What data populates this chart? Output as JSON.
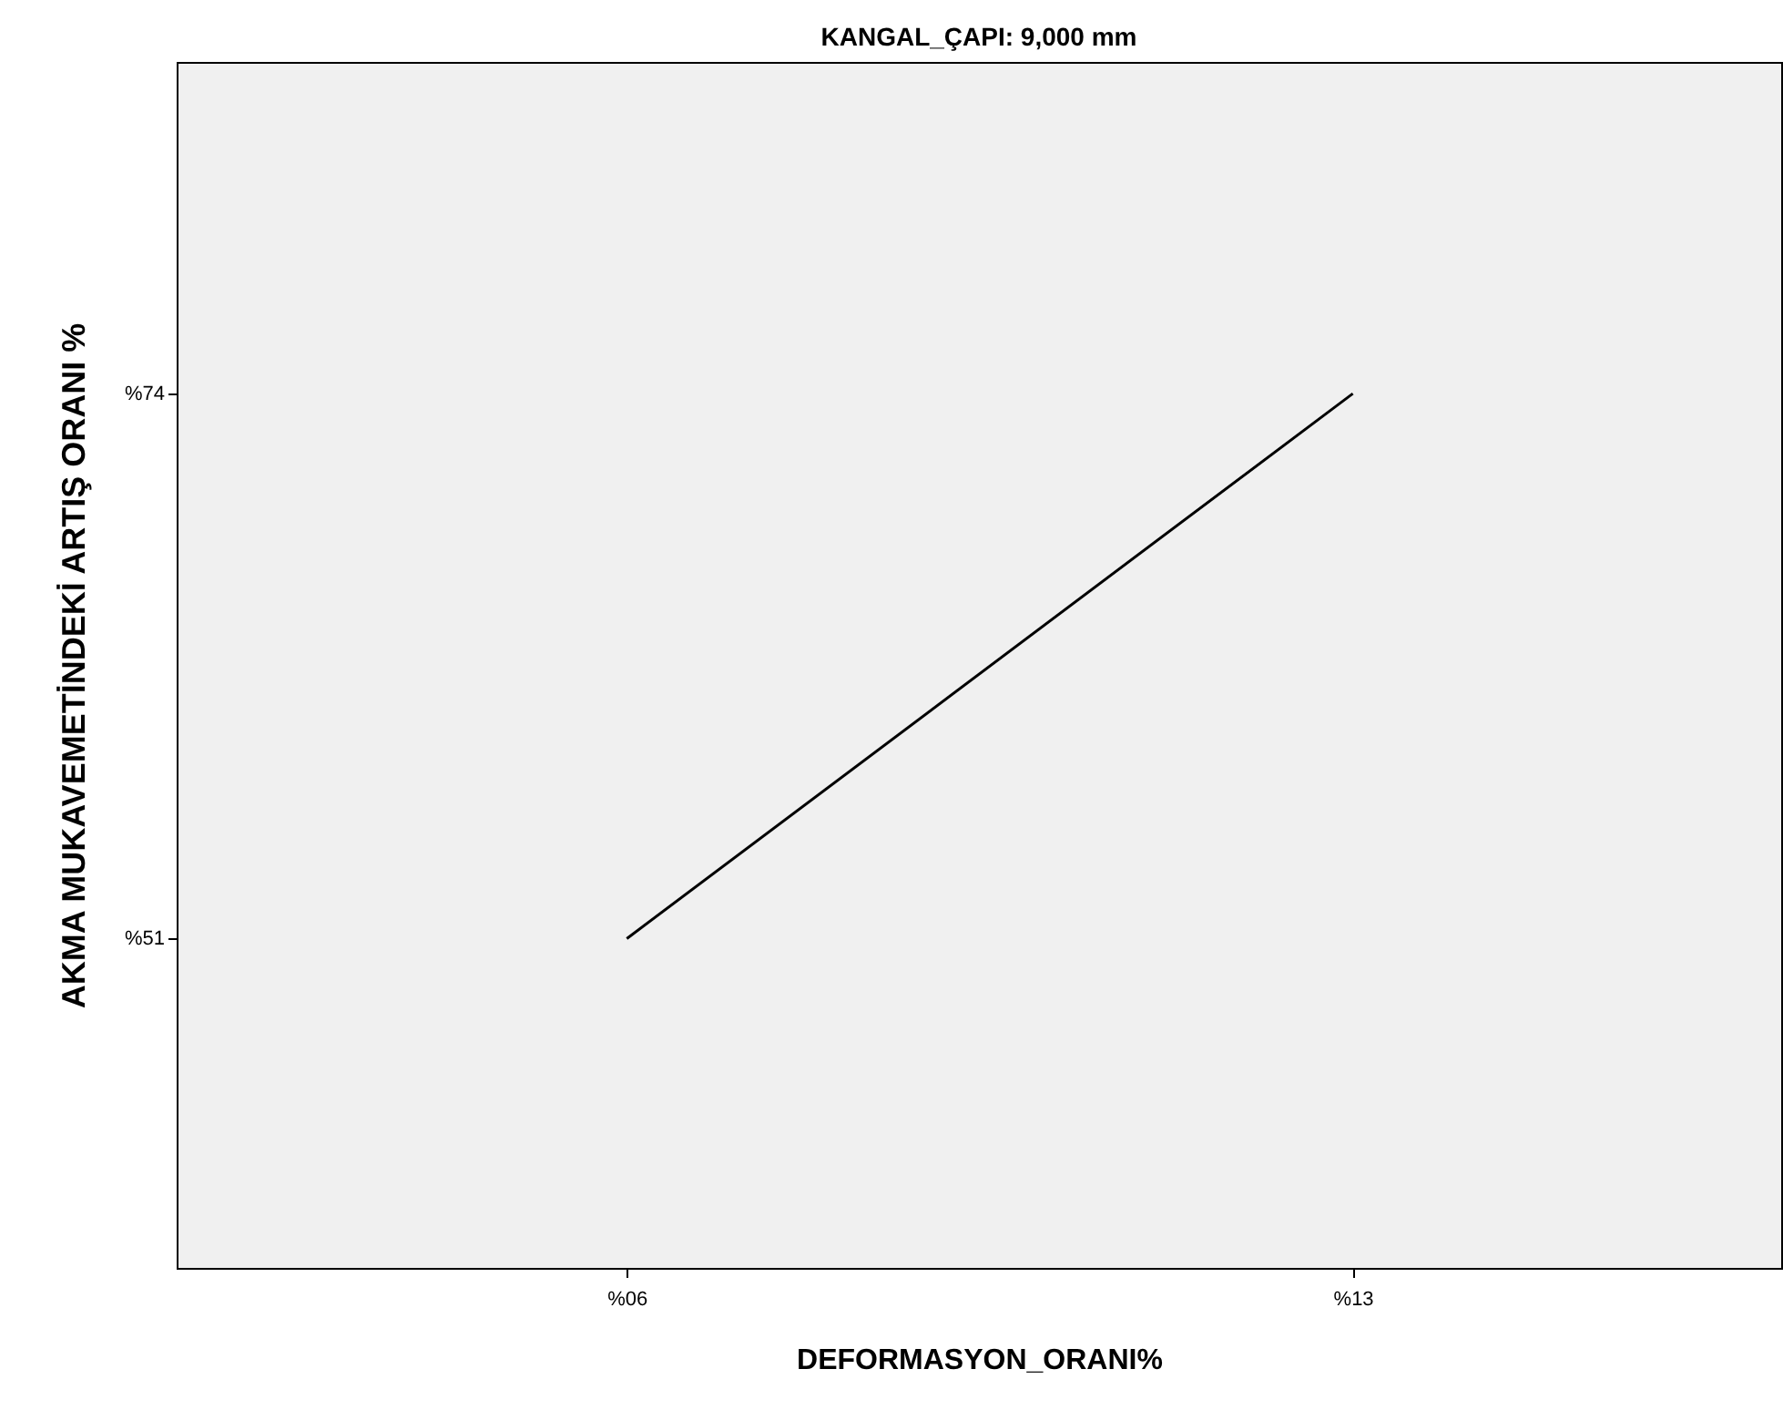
{
  "chart_data": {
    "type": "line",
    "title": "KANGAL_ÇAPI: 9,000 mm",
    "xlabel": "DEFORMASYON_ORANI%",
    "ylabel": "AKMA MUKAVEMETİNDEKİ ARTIŞ ORANI %",
    "categories": [
      "%06",
      "%13"
    ],
    "series": [
      {
        "color": "#000000",
        "values": [
          51,
          74
        ]
      }
    ],
    "ylim": [
      37.1,
      88
    ],
    "yticks": [
      {
        "value": 51,
        "label": "%51"
      },
      {
        "value": 74,
        "label": "%74"
      }
    ],
    "grid": false,
    "marker": "none",
    "line_style": "solid"
  }
}
